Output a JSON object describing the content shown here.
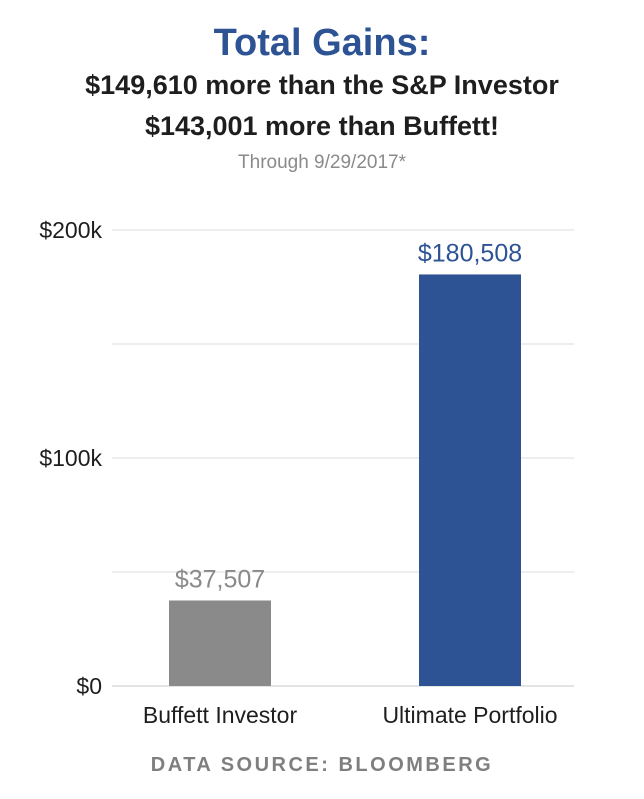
{
  "header": {
    "title": "Total Gains:",
    "subtitle_line1": "$149,610 more than the S&P Investor",
    "subtitle_line2": "$143,001 more than Buffett!",
    "note": "Through 9/29/2017*"
  },
  "footer": {
    "source": "DATA SOURCE: BLOOMBERG"
  },
  "chart_data": {
    "type": "bar",
    "categories": [
      "Buffett Investor",
      "Ultimate Portfolio"
    ],
    "values": [
      37507,
      180508
    ],
    "data_labels": [
      "$37,507",
      "$180,508"
    ],
    "bar_colors": [
      "#8a8a8a",
      "#2d5394"
    ],
    "label_colors": [
      "#8a8a8a",
      "#2d5394"
    ],
    "ylim": [
      0,
      200000
    ],
    "yticks": [
      {
        "value": 0,
        "label": "$0"
      },
      {
        "value": 100000,
        "label": "$100k"
      },
      {
        "value": 200000,
        "label": "$200k"
      }
    ],
    "gridlines": [
      0,
      50000,
      100000,
      150000,
      200000
    ],
    "grid": true,
    "title": "Total Gains:",
    "xlabel": "",
    "ylabel": ""
  }
}
